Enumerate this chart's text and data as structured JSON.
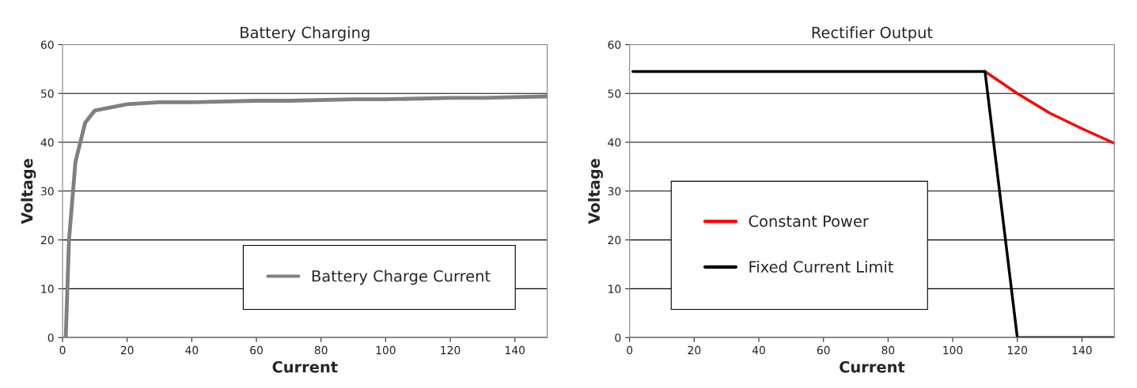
{
  "chart_data": [
    {
      "type": "line",
      "title": "Battery Charging",
      "xlabel": "Current",
      "ylabel": "Voltage",
      "xlim": [
        0,
        150
      ],
      "xticks": [
        0,
        20,
        40,
        60,
        80,
        100,
        120,
        140
      ],
      "ylim": [
        0,
        60
      ],
      "yticks": [
        0,
        10,
        20,
        30,
        40,
        50,
        60
      ],
      "grid": "y",
      "legend": "bottom right",
      "series": [
        {
          "name": "Battery Charge Current",
          "color": "#808080",
          "x": [
            1,
            2,
            4,
            7,
            10,
            20,
            30,
            40,
            60,
            70,
            90,
            100,
            120,
            130,
            150
          ],
          "values": [
            0,
            20,
            36,
            44,
            46.5,
            47.8,
            48.2,
            48.2,
            48.5,
            48.5,
            48.8,
            48.8,
            49.1,
            49.1,
            49.4
          ]
        }
      ]
    },
    {
      "type": "line",
      "title": "Rectifier Output",
      "xlabel": "Current",
      "ylabel": "Voltage",
      "xlim": [
        0,
        150
      ],
      "xticks": [
        0,
        20,
        40,
        60,
        80,
        100,
        120,
        140
      ],
      "ylim": [
        0,
        60
      ],
      "yticks": [
        0,
        10,
        20,
        30,
        40,
        50,
        60
      ],
      "grid": "y",
      "legend": "bottom left",
      "series": [
        {
          "name": "Constant Power",
          "color": "#ff0000",
          "x": [
            110,
            120,
            130,
            140,
            150
          ],
          "values": [
            54.5,
            50,
            46,
            42.8,
            39.8
          ]
        },
        {
          "name": "Fixed Current Limit",
          "color": "#000000",
          "x": [
            1,
            110,
            120,
            150
          ],
          "values": [
            54.5,
            54.5,
            0,
            0
          ]
        }
      ]
    }
  ]
}
